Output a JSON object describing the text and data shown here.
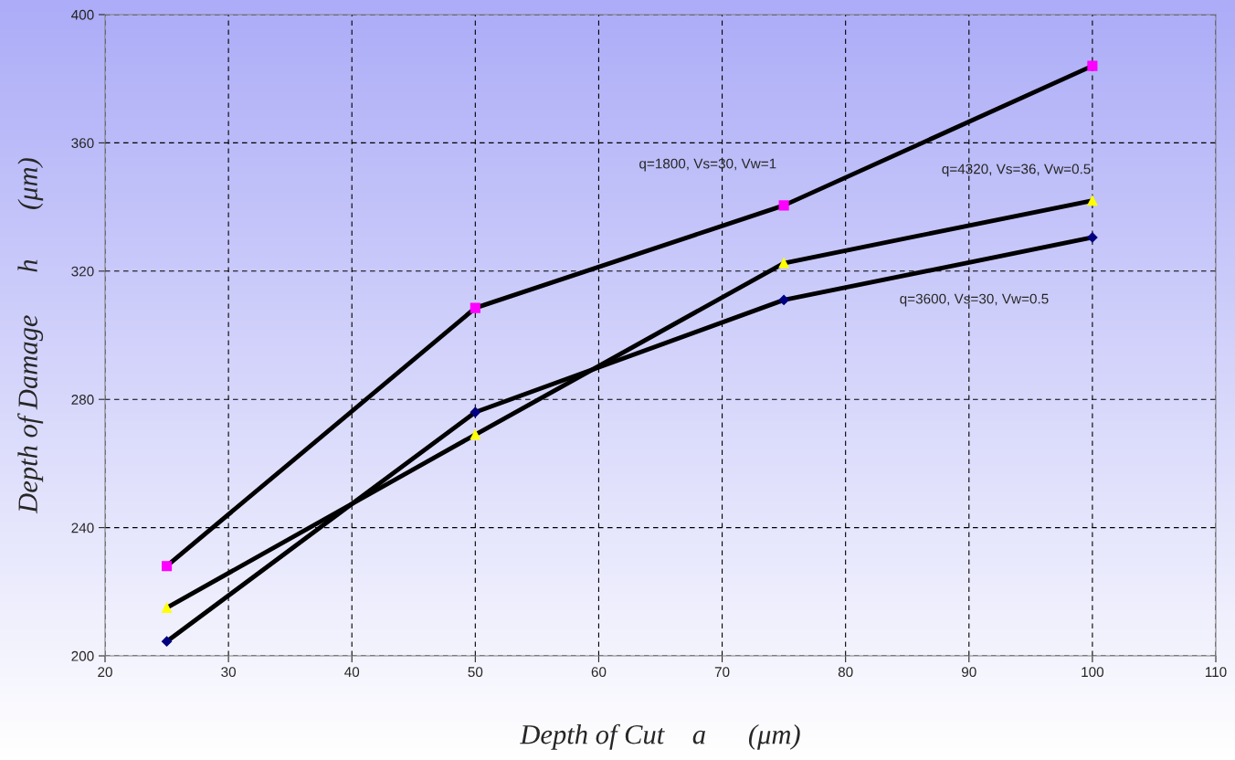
{
  "chart_data": {
    "type": "line",
    "xlabel": "Depth of Cut    a      (μm)",
    "ylabel": "Depth of Damage      h       (μm)",
    "x": [
      25,
      50,
      75,
      100
    ],
    "series": [
      {
        "name": "q=1800, Vs=30, Vw=1",
        "color": "#ff00ff",
        "marker": "square",
        "values": [
          228,
          308.5,
          340.5,
          384
        ]
      },
      {
        "name": "q=4320, Vs=36, Vw=0.5",
        "color": "#ffff00",
        "marker": "triangle",
        "values": [
          215,
          269,
          322.5,
          342
        ]
      },
      {
        "name": "q=3600, Vs=30, Vw=0.5",
        "color": "#000080",
        "marker": "diamond",
        "values": [
          204.5,
          276,
          311,
          330.5
        ]
      }
    ],
    "xlim": [
      20,
      110
    ],
    "xticks": [
      20,
      30,
      40,
      50,
      60,
      70,
      80,
      90,
      100,
      110
    ],
    "ylim": [
      200,
      400
    ],
    "yticks": [
      200,
      240,
      280,
      320,
      360,
      400
    ],
    "grid": true,
    "legend": false
  }
}
